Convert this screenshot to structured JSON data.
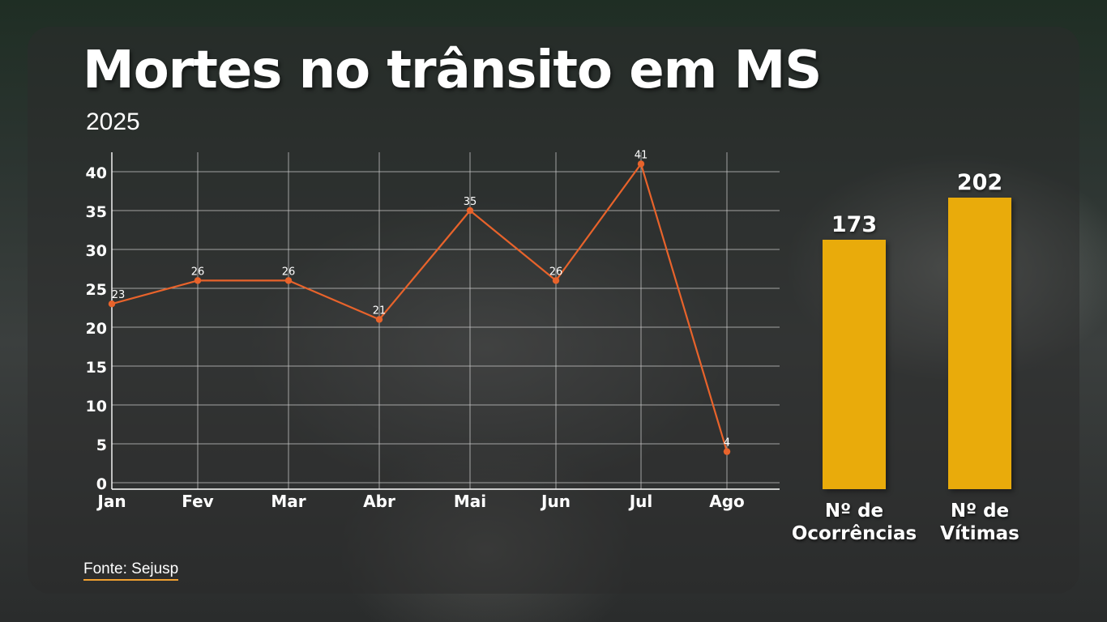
{
  "title": "Mortes no trânsito em MS",
  "subtitle": "2025",
  "source": "Fonte: Sejusp",
  "colors": {
    "line": "#e8632b",
    "bar": "#e9ab0b",
    "grid": "#c9c9c9",
    "text": "#ffffff"
  },
  "chart_data": [
    {
      "type": "line",
      "categories": [
        "Jan",
        "Fev",
        "Mar",
        "Abr",
        "Mai",
        "Jun",
        "Jul",
        "Ago"
      ],
      "values": [
        23,
        26,
        26,
        21,
        35,
        26,
        41,
        4
      ],
      "ylim": [
        0,
        40
      ],
      "yticks": [
        0,
        5,
        10,
        15,
        20,
        25,
        30,
        35,
        40
      ],
      "grid": true,
      "data_labels": true
    },
    {
      "type": "bar",
      "categories": [
        "Nº de Ocorrências",
        "Nº de Vítimas"
      ],
      "values": [
        173,
        202
      ],
      "data_labels": true
    }
  ]
}
